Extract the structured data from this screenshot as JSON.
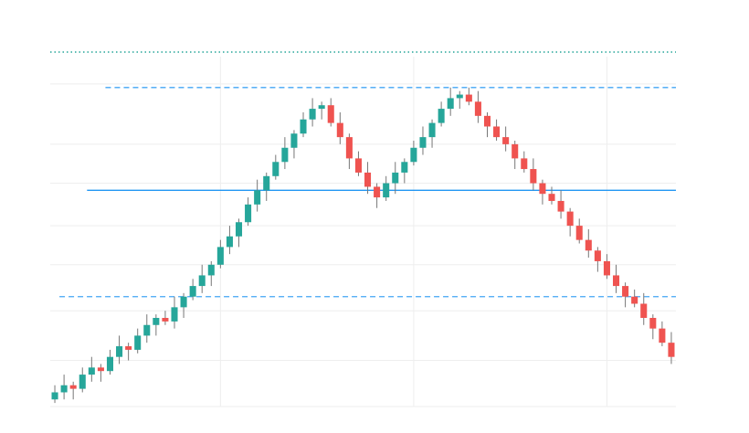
{
  "chart_data": {
    "type": "candlestick",
    "ylim": [
      0,
      100
    ],
    "ygrid": [
      0,
      13,
      27,
      40,
      51,
      63,
      74,
      91
    ],
    "xgrid": [
      18,
      39,
      60
    ],
    "up_color": "#26a69a",
    "down_color": "#ef5350",
    "open": [
      2,
      4,
      6,
      5,
      9,
      11,
      10,
      14,
      17,
      16,
      20,
      23,
      25,
      24,
      28,
      31,
      34,
      37,
      40,
      45,
      48,
      52,
      57,
      61,
      65,
      69,
      73,
      77,
      81,
      84,
      85,
      80,
      76,
      70,
      66,
      62,
      59,
      63,
      66,
      69,
      73,
      76,
      80,
      84,
      87,
      88,
      86,
      82,
      79,
      76,
      74,
      70,
      67,
      63,
      60,
      58,
      55,
      51,
      47,
      44,
      41,
      37,
      34,
      31,
      29,
      25,
      22,
      18
    ],
    "high": [
      6,
      9,
      7,
      11,
      14,
      12,
      16,
      20,
      18,
      22,
      26,
      26,
      27,
      31,
      32,
      36,
      40,
      41,
      47,
      51,
      53,
      59,
      64,
      66,
      71,
      76,
      78,
      83,
      87,
      86,
      87,
      83,
      77,
      72,
      69,
      63,
      65,
      69,
      70,
      75,
      79,
      81,
      86,
      90,
      89,
      90,
      89,
      83,
      81,
      79,
      75,
      72,
      70,
      64,
      62,
      61,
      56,
      53,
      50,
      45,
      43,
      40,
      35,
      33,
      32,
      26,
      24,
      21
    ],
    "low": [
      1,
      2,
      2,
      4,
      7,
      7,
      9,
      12,
      13,
      15,
      18,
      20,
      23,
      22,
      25,
      30,
      32,
      34,
      39,
      43,
      45,
      51,
      55,
      58,
      64,
      67,
      70,
      76,
      79,
      81,
      79,
      74,
      67,
      65,
      60,
      56,
      58,
      60,
      63,
      68,
      71,
      73,
      79,
      82,
      84,
      85,
      80,
      76,
      75,
      72,
      67,
      66,
      61,
      57,
      57,
      53,
      48,
      46,
      42,
      38,
      36,
      32,
      28,
      28,
      23,
      19,
      17,
      12
    ],
    "close": [
      4,
      6,
      5,
      9,
      11,
      10,
      14,
      17,
      16,
      20,
      23,
      25,
      24,
      28,
      31,
      34,
      37,
      40,
      45,
      48,
      52,
      57,
      61,
      65,
      69,
      73,
      77,
      81,
      84,
      85,
      80,
      76,
      70,
      66,
      62,
      59,
      63,
      66,
      69,
      73,
      76,
      80,
      84,
      87,
      88,
      86,
      82,
      79,
      76,
      74,
      70,
      67,
      63,
      60,
      58,
      55,
      51,
      47,
      44,
      41,
      37,
      34,
      31,
      29,
      25,
      22,
      18,
      14
    ],
    "levels": [
      {
        "value": 100,
        "start": 0,
        "color": "#26a69a",
        "style": "dotted"
      },
      {
        "value": 90,
        "start": 6,
        "color": "#42a5f5",
        "style": "dashed"
      },
      {
        "value": 61,
        "start": 4,
        "color": "#2196f3",
        "style": "solid"
      },
      {
        "value": 31,
        "start": 1,
        "color": "#42a5f5",
        "style": "dashed"
      }
    ]
  }
}
